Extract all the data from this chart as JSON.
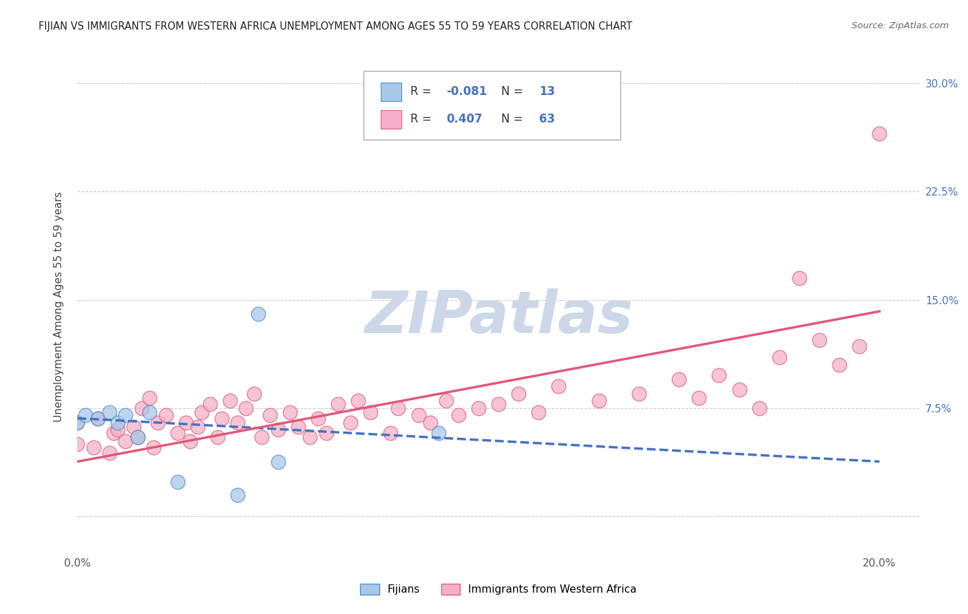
{
  "title": "FIJIAN VS IMMIGRANTS FROM WESTERN AFRICA UNEMPLOYMENT AMONG AGES 55 TO 59 YEARS CORRELATION CHART",
  "source": "Source: ZipAtlas.com",
  "ylabel": "Unemployment Among Ages 55 to 59 years",
  "xlim": [
    0.0,
    0.21
  ],
  "ylim": [
    -0.025,
    0.315
  ],
  "yticks": [
    0.0,
    0.075,
    0.15,
    0.225,
    0.3
  ],
  "ytick_labels": [
    "",
    "7.5%",
    "15.0%",
    "22.5%",
    "30.0%"
  ],
  "xticks": [
    0.0,
    0.2
  ],
  "xtick_labels": [
    "0.0%",
    "20.0%"
  ],
  "fijian_R": -0.081,
  "fijian_N": 13,
  "western_africa_R": 0.407,
  "western_africa_N": 63,
  "fijian_color": "#a8c8e8",
  "western_africa_color": "#f4b0c8",
  "fijian_edge_color": "#5090d0",
  "western_africa_edge_color": "#e06080",
  "fijian_line_color": "#4472c4",
  "western_africa_line_color": "#e05878",
  "watermark_color": "#ccd8e8",
  "background_color": "#ffffff",
  "grid_color": "#cccccc",
  "fijian_scatter_x": [
    0.0,
    0.002,
    0.005,
    0.008,
    0.01,
    0.012,
    0.015,
    0.018,
    0.025,
    0.04,
    0.045,
    0.09,
    0.05
  ],
  "fijian_scatter_y": [
    0.065,
    0.07,
    0.068,
    0.072,
    0.065,
    0.07,
    0.055,
    0.072,
    0.024,
    0.015,
    0.14,
    0.058,
    0.038
  ],
  "western_africa_scatter_x": [
    0.0,
    0.0,
    0.004,
    0.005,
    0.008,
    0.009,
    0.01,
    0.012,
    0.014,
    0.015,
    0.016,
    0.018,
    0.019,
    0.02,
    0.022,
    0.025,
    0.027,
    0.028,
    0.03,
    0.031,
    0.033,
    0.035,
    0.036,
    0.038,
    0.04,
    0.042,
    0.044,
    0.046,
    0.048,
    0.05,
    0.053,
    0.055,
    0.058,
    0.06,
    0.062,
    0.065,
    0.068,
    0.07,
    0.073,
    0.078,
    0.08,
    0.085,
    0.088,
    0.092,
    0.095,
    0.1,
    0.105,
    0.11,
    0.115,
    0.12,
    0.13,
    0.14,
    0.15,
    0.155,
    0.16,
    0.165,
    0.17,
    0.175,
    0.18,
    0.185,
    0.19,
    0.195,
    0.2
  ],
  "western_africa_scatter_y": [
    0.05,
    0.065,
    0.048,
    0.068,
    0.044,
    0.058,
    0.06,
    0.052,
    0.062,
    0.055,
    0.075,
    0.082,
    0.048,
    0.065,
    0.07,
    0.058,
    0.065,
    0.052,
    0.062,
    0.072,
    0.078,
    0.055,
    0.068,
    0.08,
    0.065,
    0.075,
    0.085,
    0.055,
    0.07,
    0.06,
    0.072,
    0.062,
    0.055,
    0.068,
    0.058,
    0.078,
    0.065,
    0.08,
    0.072,
    0.058,
    0.075,
    0.07,
    0.065,
    0.08,
    0.07,
    0.075,
    0.078,
    0.085,
    0.072,
    0.09,
    0.08,
    0.085,
    0.095,
    0.082,
    0.098,
    0.088,
    0.075,
    0.11,
    0.165,
    0.122,
    0.105,
    0.118,
    0.265
  ],
  "fijian_trend_x0": 0.0,
  "fijian_trend_y0": 0.068,
  "fijian_trend_x1": 0.2,
  "fijian_trend_y1": 0.038,
  "wa_trend_x0": 0.0,
  "wa_trend_y0": 0.038,
  "wa_trend_x1": 0.2,
  "wa_trend_y1": 0.142
}
